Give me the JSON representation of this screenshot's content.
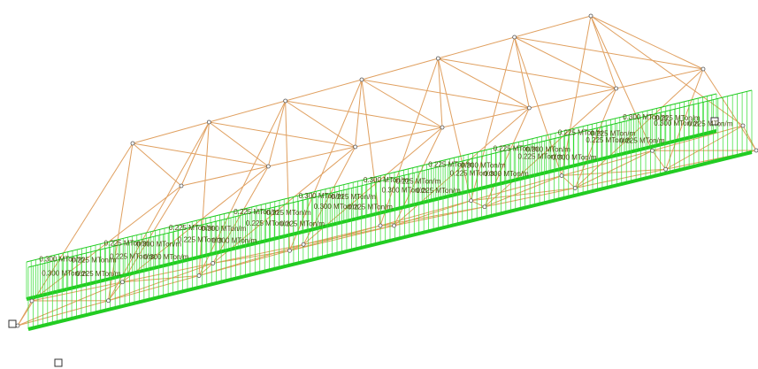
{
  "load_labels": [
    "0.300 MTon/m",
    "0.225 MTon/m",
    "0.225 MTon/m",
    "0.300 MTon/m",
    "0.225 MTon/m",
    "0.300 MTon/m",
    "0.225 MTon/m",
    "0.225 MTon/m",
    "0.300 MTon/m",
    "0.225 MTon/m",
    "0.300 MTon/m",
    "0.225 MTon/m",
    "0.225 MTon/m",
    "0.300 MTon/m",
    "0.225 MTon/m",
    "0.300 MTon/m",
    "0.225 MTon/m",
    "0.225 MTon/m",
    "0.300 MTon/m",
    "0.225 MTon/m",
    "0.300 MTon/m",
    "0.225 MTon/m",
    "0.225 MTon/m",
    "0.300 MTon/m",
    "0.225 MTon/m",
    "0.300 MTon/m",
    "0.225 MTon/m",
    "0.225 MTon/m",
    "0.300 MTon/m",
    "0.225 MTon/m",
    "0.300 MTon/m",
    "0.225 MTon/m",
    "0.225 MTon/m",
    "0.300 MTon/m",
    "0.225 MTon/m",
    "0.300 MTon/m",
    "0.225 MTon/m",
    "0.225 MTon/m",
    "0.300 MTon/m",
    "0.225 MTon/m"
  ],
  "colors": {
    "truss": "#e0a060",
    "load": "#22cc22",
    "label": "#4a4a10",
    "background": "#ffffff"
  }
}
